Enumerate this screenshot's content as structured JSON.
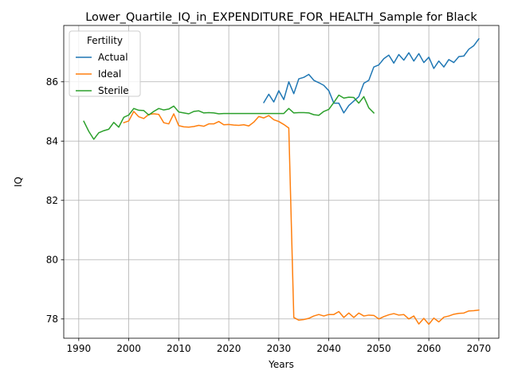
{
  "chart_data": {
    "type": "line",
    "title": "Lower_Quartile_IQ_in_EXPENDITURE_FOR_HEALTH_Sample for Black",
    "xlabel": "Years",
    "ylabel": "IQ",
    "xlim": [
      1987,
      2074
    ],
    "ylim": [
      77.35,
      87.9
    ],
    "xticks": [
      1990,
      2000,
      2010,
      2020,
      2030,
      2040,
      2050,
      2060,
      2070
    ],
    "yticks": [
      78,
      80,
      82,
      84,
      86
    ],
    "grid": true,
    "legend": {
      "title": "Fertility",
      "placement": "upper-left"
    },
    "series": [
      {
        "name": "Actual",
        "color": "#1f77b4",
        "x": [
          2027,
          2028,
          2029,
          2030,
          2031,
          2032,
          2033,
          2034,
          2035,
          2036,
          2037,
          2038,
          2039,
          2040,
          2041,
          2042,
          2043,
          2044,
          2045,
          2046,
          2047,
          2048,
          2049,
          2050,
          2051,
          2052,
          2053,
          2054,
          2055,
          2056,
          2057,
          2058,
          2059,
          2060,
          2061,
          2062,
          2063,
          2064,
          2065,
          2066,
          2067,
          2068,
          2069,
          2070
        ],
        "y": [
          85.3,
          85.58,
          85.32,
          85.7,
          85.4,
          86.0,
          85.6,
          86.1,
          86.15,
          86.25,
          86.05,
          85.97,
          85.88,
          85.7,
          85.28,
          85.28,
          84.95,
          85.2,
          85.35,
          85.5,
          85.95,
          86.05,
          86.5,
          86.57,
          86.78,
          86.9,
          86.63,
          86.92,
          86.73,
          86.98,
          86.7,
          86.95,
          86.65,
          86.83,
          86.45,
          86.7,
          86.5,
          86.75,
          86.65,
          86.85,
          86.87,
          87.1,
          87.22,
          87.45
        ]
      },
      {
        "name": "Ideal",
        "color": "#ff7f0e",
        "x": [
          1999,
          2000,
          2001,
          2002,
          2003,
          2004,
          2005,
          2006,
          2007,
          2008,
          2009,
          2010,
          2011,
          2012,
          2013,
          2014,
          2015,
          2016,
          2017,
          2018,
          2019,
          2020,
          2021,
          2022,
          2023,
          2024,
          2025,
          2026,
          2027,
          2028,
          2029,
          2030,
          2031,
          2032,
          2033,
          2034,
          2035,
          2036,
          2037,
          2038,
          2039,
          2040,
          2041,
          2042,
          2043,
          2044,
          2045,
          2046,
          2047,
          2048,
          2049,
          2050,
          2051,
          2052,
          2053,
          2054,
          2055,
          2056,
          2057,
          2058,
          2059,
          2060,
          2061,
          2062,
          2063,
          2064,
          2065,
          2066,
          2067,
          2068,
          2069,
          2070
        ],
        "y": [
          84.62,
          84.68,
          85.0,
          84.82,
          84.76,
          84.9,
          84.92,
          84.9,
          84.62,
          84.58,
          84.92,
          84.52,
          84.48,
          84.47,
          84.49,
          84.53,
          84.5,
          84.58,
          84.58,
          84.66,
          84.55,
          84.56,
          84.54,
          84.53,
          84.55,
          84.51,
          84.64,
          84.83,
          84.78,
          84.86,
          84.72,
          84.66,
          84.56,
          84.44,
          78.05,
          77.96,
          77.98,
          78.02,
          78.1,
          78.15,
          78.1,
          78.15,
          78.15,
          78.25,
          78.05,
          78.2,
          78.05,
          78.2,
          78.1,
          78.13,
          78.12,
          78.0,
          78.08,
          78.14,
          78.18,
          78.13,
          78.15,
          78.0,
          78.1,
          77.83,
          78.02,
          77.82,
          78.03,
          77.9,
          78.06,
          78.1,
          78.16,
          78.19,
          78.2,
          78.27,
          78.28,
          78.3
        ]
      },
      {
        "name": "Sterile",
        "color": "#2ca02c",
        "x": [
          1991,
          1992,
          1993,
          1994,
          1995,
          1996,
          1997,
          1998,
          1999,
          2000,
          2001,
          2002,
          2003,
          2004,
          2005,
          2006,
          2007,
          2008,
          2009,
          2010,
          2011,
          2012,
          2013,
          2014,
          2015,
          2016,
          2017,
          2018,
          2019,
          2020,
          2021,
          2022,
          2023,
          2024,
          2025,
          2026,
          2027,
          2028,
          2029,
          2030,
          2031,
          2032,
          2033,
          2034,
          2035,
          2036,
          2037,
          2038,
          2039,
          2040,
          2041,
          2042,
          2043,
          2044,
          2045,
          2046,
          2047,
          2048,
          2049
        ],
        "y": [
          84.67,
          84.33,
          84.06,
          84.28,
          84.35,
          84.4,
          84.63,
          84.47,
          84.8,
          84.88,
          85.1,
          85.04,
          85.03,
          84.88,
          85.0,
          85.1,
          85.05,
          85.08,
          85.18,
          84.98,
          84.95,
          84.92,
          85.0,
          85.02,
          84.95,
          84.96,
          84.95,
          84.92,
          84.93,
          84.93,
          84.93,
          84.93,
          84.93,
          84.93,
          84.93,
          84.93,
          84.93,
          84.93,
          84.93,
          84.93,
          84.93,
          85.1,
          84.95,
          84.96,
          84.96,
          84.95,
          84.89,
          84.87,
          85.0,
          85.07,
          85.3,
          85.55,
          85.45,
          85.48,
          85.47,
          85.28,
          85.5,
          85.12,
          84.95
        ]
      }
    ]
  }
}
